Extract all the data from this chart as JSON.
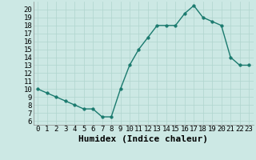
{
  "x": [
    0,
    1,
    2,
    3,
    4,
    5,
    6,
    7,
    8,
    9,
    10,
    11,
    12,
    13,
    14,
    15,
    16,
    17,
    18,
    19,
    20,
    21,
    22,
    23
  ],
  "y": [
    10,
    9.5,
    9,
    8.5,
    8,
    7.5,
    7.5,
    6.5,
    6.5,
    10,
    13,
    15,
    16.5,
    18,
    18,
    18,
    19.5,
    20.5,
    19,
    18.5,
    18,
    14,
    13,
    13
  ],
  "line_color": "#1a7a6e",
  "marker": "o",
  "marker_size": 2.5,
  "bg_color": "#cce8e4",
  "grid_color": "#b0d4ce",
  "xlabel": "Humidex (Indice chaleur)",
  "xlim": [
    -0.5,
    23.5
  ],
  "ylim": [
    5.5,
    21.0
  ],
  "yticks": [
    6,
    7,
    8,
    9,
    10,
    11,
    12,
    13,
    14,
    15,
    16,
    17,
    18,
    19,
    20
  ],
  "xticks": [
    0,
    1,
    2,
    3,
    4,
    5,
    6,
    7,
    8,
    9,
    10,
    11,
    12,
    13,
    14,
    15,
    16,
    17,
    18,
    19,
    20,
    21,
    22,
    23
  ],
  "tick_fontsize": 6.5,
  "xlabel_fontsize": 8,
  "linewidth": 1.0
}
